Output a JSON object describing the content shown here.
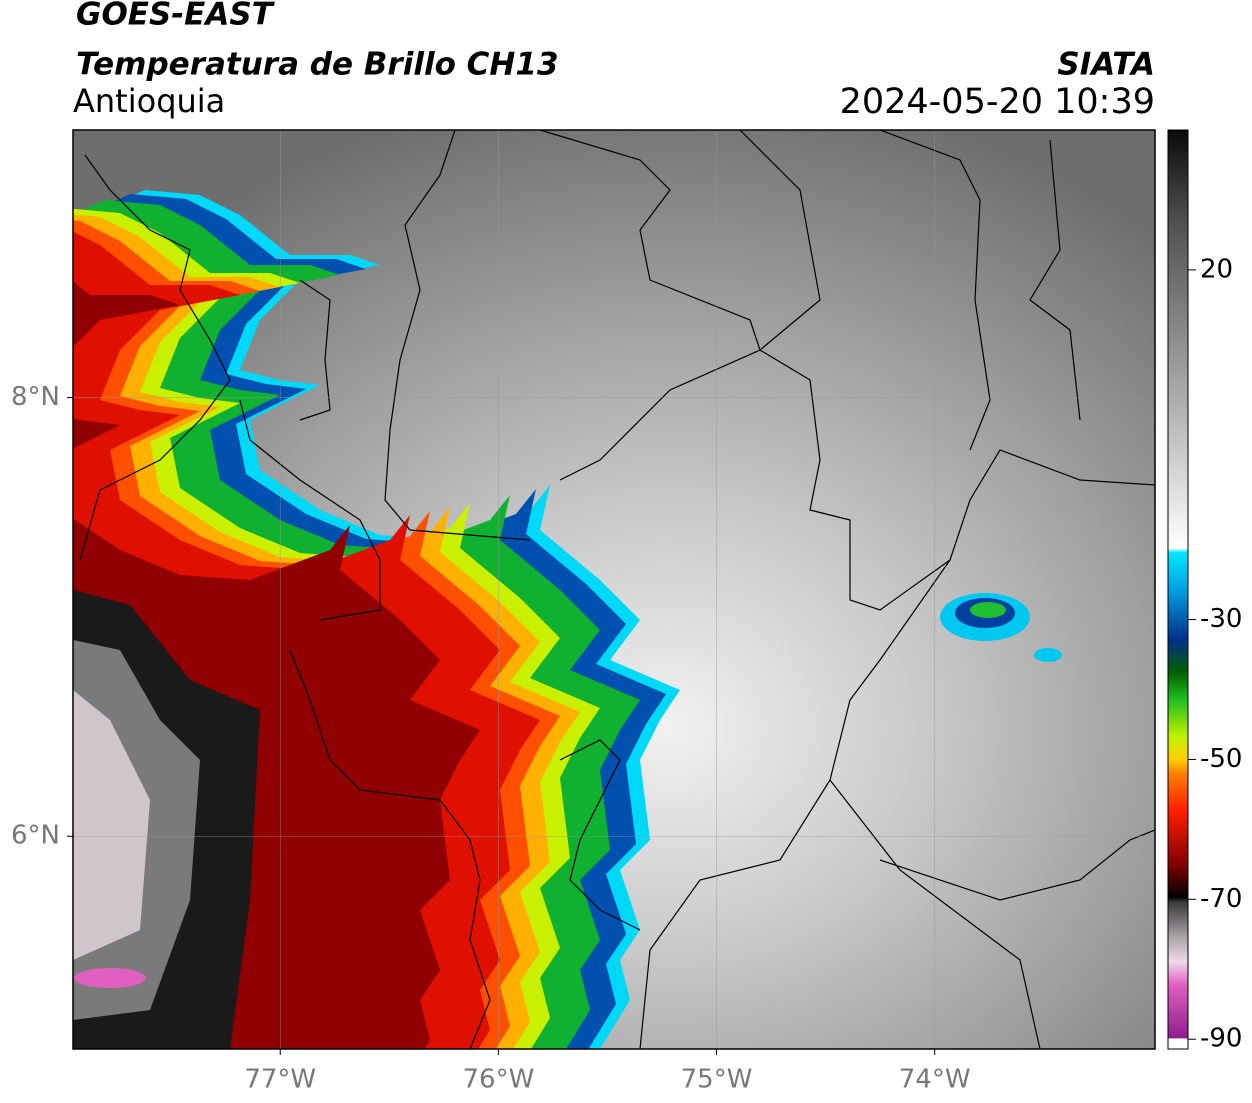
{
  "header": {
    "title": "GOES-EAST",
    "subtitle": "Temperatura de Brillo CH13",
    "region": "Antioquia",
    "source": "SIATA",
    "datetime": "2024-05-20 10:39"
  },
  "map": {
    "xlim": [
      -77.95,
      -72.99
    ],
    "ylim": [
      5.03,
      9.22
    ],
    "xticks": [
      {
        "value": -77,
        "label": "77°W"
      },
      {
        "value": -76,
        "label": "76°W"
      },
      {
        "value": -75,
        "label": "75°W"
      },
      {
        "value": -74,
        "label": "74°W"
      }
    ],
    "yticks": [
      {
        "value": 6,
        "label": "6°N"
      },
      {
        "value": 8,
        "label": "8°N"
      }
    ],
    "grid": true
  },
  "colorbar": {
    "lim": [
      -91.4,
      40
    ],
    "ticks": [
      20,
      -30,
      -50,
      -70,
      -90
    ]
  }
}
